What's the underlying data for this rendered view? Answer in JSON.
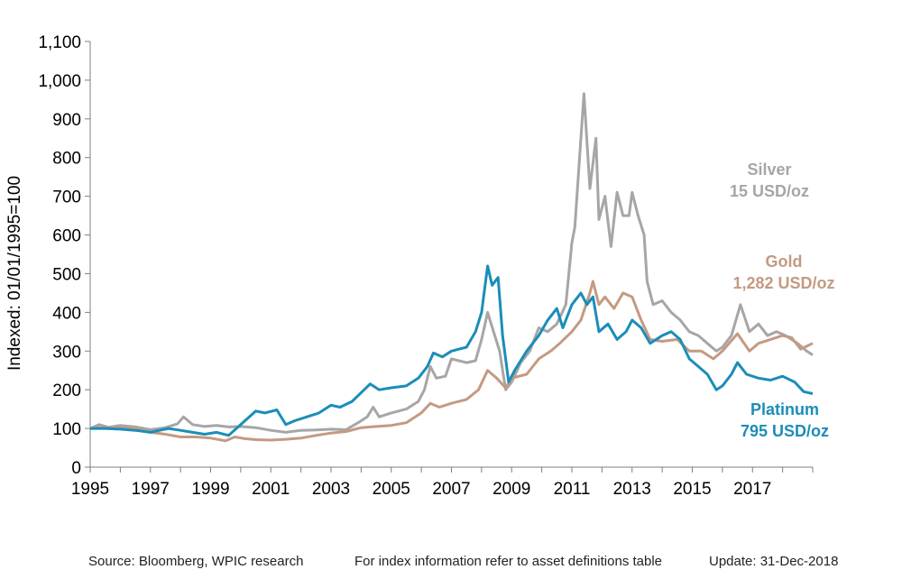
{
  "chart_data": {
    "type": "line",
    "ylabel": "Indexed: 01/01/1995=100",
    "xlabel": "",
    "xlim": [
      1995,
      2019
    ],
    "ylim": [
      0,
      1100
    ],
    "y_ticks": [
      0,
      100,
      200,
      300,
      400,
      500,
      600,
      700,
      800,
      900,
      1000,
      1100
    ],
    "y_tick_labels": [
      "0",
      "100",
      "200",
      "300",
      "400",
      "500",
      "600",
      "700",
      "800",
      "900",
      "1,000",
      "1,100"
    ],
    "x_ticks": [
      1995,
      1997,
      1999,
      2001,
      2003,
      2005,
      2007,
      2009,
      2011,
      2013,
      2015,
      2017
    ],
    "x_tick_labels": [
      "1995",
      "1997",
      "1999",
      "2001",
      "2003",
      "2005",
      "2007",
      "2009",
      "2011",
      "2013",
      "2015",
      "2017"
    ],
    "grid": false,
    "series": [
      {
        "name": "Silver",
        "label_lines": [
          "Silver",
          "15 USD/oz"
        ],
        "color": "#A6A6A6",
        "points": [
          [
            1995.0,
            100
          ],
          [
            1995.3,
            110
          ],
          [
            1995.6,
            103
          ],
          [
            1996.0,
            108
          ],
          [
            1996.5,
            104
          ],
          [
            1997.0,
            97
          ],
          [
            1997.5,
            102
          ],
          [
            1997.9,
            112
          ],
          [
            1998.1,
            130
          ],
          [
            1998.4,
            110
          ],
          [
            1998.8,
            105
          ],
          [
            1999.2,
            108
          ],
          [
            1999.6,
            104
          ],
          [
            2000.0,
            105
          ],
          [
            2000.5,
            102
          ],
          [
            2001.0,
            95
          ],
          [
            2001.5,
            90
          ],
          [
            2002.0,
            95
          ],
          [
            2002.5,
            96
          ],
          [
            2003.0,
            98
          ],
          [
            2003.5,
            97
          ],
          [
            2003.9,
            115
          ],
          [
            2004.2,
            130
          ],
          [
            2004.4,
            155
          ],
          [
            2004.6,
            130
          ],
          [
            2005.0,
            140
          ],
          [
            2005.5,
            150
          ],
          [
            2005.9,
            170
          ],
          [
            2006.1,
            200
          ],
          [
            2006.3,
            260
          ],
          [
            2006.5,
            230
          ],
          [
            2006.8,
            235
          ],
          [
            2007.0,
            280
          ],
          [
            2007.5,
            270
          ],
          [
            2007.8,
            275
          ],
          [
            2008.0,
            330
          ],
          [
            2008.2,
            400
          ],
          [
            2008.4,
            350
          ],
          [
            2008.6,
            300
          ],
          [
            2008.8,
            200
          ],
          [
            2009.0,
            220
          ],
          [
            2009.3,
            270
          ],
          [
            2009.6,
            300
          ],
          [
            2009.9,
            360
          ],
          [
            2010.2,
            350
          ],
          [
            2010.5,
            370
          ],
          [
            2010.8,
            420
          ],
          [
            2011.0,
            580
          ],
          [
            2011.1,
            620
          ],
          [
            2011.3,
            850
          ],
          [
            2011.4,
            965
          ],
          [
            2011.6,
            720
          ],
          [
            2011.8,
            850
          ],
          [
            2011.9,
            640
          ],
          [
            2012.1,
            700
          ],
          [
            2012.3,
            570
          ],
          [
            2012.5,
            710
          ],
          [
            2012.7,
            650
          ],
          [
            2012.9,
            650
          ],
          [
            2013.0,
            710
          ],
          [
            2013.2,
            650
          ],
          [
            2013.4,
            600
          ],
          [
            2013.5,
            480
          ],
          [
            2013.7,
            420
          ],
          [
            2014.0,
            430
          ],
          [
            2014.3,
            400
          ],
          [
            2014.6,
            380
          ],
          [
            2014.9,
            350
          ],
          [
            2015.2,
            340
          ],
          [
            2015.5,
            320
          ],
          [
            2015.8,
            300
          ],
          [
            2016.0,
            310
          ],
          [
            2016.3,
            340
          ],
          [
            2016.6,
            420
          ],
          [
            2016.9,
            350
          ],
          [
            2017.2,
            370
          ],
          [
            2017.5,
            340
          ],
          [
            2017.8,
            350
          ],
          [
            2018.1,
            340
          ],
          [
            2018.5,
            320
          ],
          [
            2018.8,
            300
          ],
          [
            2019.0,
            290
          ]
        ]
      },
      {
        "name": "Gold",
        "label_lines": [
          "Gold",
          "1,282 USD/oz"
        ],
        "color": "#C49A82",
        "points": [
          [
            1995.0,
            100
          ],
          [
            1995.5,
            103
          ],
          [
            1996.0,
            102
          ],
          [
            1996.5,
            100
          ],
          [
            1997.0,
            90
          ],
          [
            1997.5,
            85
          ],
          [
            1998.0,
            78
          ],
          [
            1998.5,
            78
          ],
          [
            1999.0,
            75
          ],
          [
            1999.5,
            68
          ],
          [
            1999.8,
            78
          ],
          [
            2000.1,
            74
          ],
          [
            2000.5,
            71
          ],
          [
            2001.0,
            70
          ],
          [
            2001.5,
            72
          ],
          [
            2002.0,
            75
          ],
          [
            2002.5,
            82
          ],
          [
            2003.0,
            88
          ],
          [
            2003.5,
            92
          ],
          [
            2004.0,
            102
          ],
          [
            2004.5,
            105
          ],
          [
            2005.0,
            108
          ],
          [
            2005.5,
            115
          ],
          [
            2006.0,
            140
          ],
          [
            2006.3,
            165
          ],
          [
            2006.6,
            155
          ],
          [
            2007.0,
            165
          ],
          [
            2007.5,
            175
          ],
          [
            2007.9,
            200
          ],
          [
            2008.2,
            250
          ],
          [
            2008.5,
            230
          ],
          [
            2008.8,
            205
          ],
          [
            2009.0,
            230
          ],
          [
            2009.5,
            240
          ],
          [
            2009.9,
            280
          ],
          [
            2010.3,
            300
          ],
          [
            2010.6,
            320
          ],
          [
            2011.0,
            350
          ],
          [
            2011.3,
            380
          ],
          [
            2011.6,
            450
          ],
          [
            2011.7,
            480
          ],
          [
            2011.9,
            420
          ],
          [
            2012.1,
            440
          ],
          [
            2012.4,
            410
          ],
          [
            2012.7,
            450
          ],
          [
            2013.0,
            440
          ],
          [
            2013.3,
            380
          ],
          [
            2013.6,
            330
          ],
          [
            2014.0,
            325
          ],
          [
            2014.5,
            330
          ],
          [
            2014.9,
            300
          ],
          [
            2015.3,
            300
          ],
          [
            2015.7,
            280
          ],
          [
            2016.0,
            300
          ],
          [
            2016.5,
            345
          ],
          [
            2016.9,
            300
          ],
          [
            2017.2,
            320
          ],
          [
            2017.6,
            330
          ],
          [
            2018.0,
            340
          ],
          [
            2018.3,
            335
          ],
          [
            2018.6,
            305
          ],
          [
            2019.0,
            320
          ]
        ]
      },
      {
        "name": "Platinum",
        "label_lines": [
          "Platinum",
          "795 USD/oz"
        ],
        "color": "#1B8DB8",
        "points": [
          [
            1995.0,
            100
          ],
          [
            1995.5,
            100
          ],
          [
            1996.0,
            98
          ],
          [
            1996.5,
            95
          ],
          [
            1997.0,
            90
          ],
          [
            1997.3,
            95
          ],
          [
            1997.6,
            100
          ],
          [
            1998.0,
            95
          ],
          [
            1998.4,
            90
          ],
          [
            1998.8,
            85
          ],
          [
            1999.2,
            90
          ],
          [
            1999.6,
            82
          ],
          [
            2000.0,
            110
          ],
          [
            2000.5,
            145
          ],
          [
            2000.8,
            140
          ],
          [
            2001.2,
            148
          ],
          [
            2001.5,
            110
          ],
          [
            2001.8,
            120
          ],
          [
            2002.2,
            130
          ],
          [
            2002.6,
            140
          ],
          [
            2003.0,
            160
          ],
          [
            2003.3,
            155
          ],
          [
            2003.7,
            170
          ],
          [
            2004.1,
            200
          ],
          [
            2004.3,
            215
          ],
          [
            2004.6,
            200
          ],
          [
            2005.0,
            205
          ],
          [
            2005.5,
            210
          ],
          [
            2005.9,
            230
          ],
          [
            2006.2,
            260
          ],
          [
            2006.4,
            295
          ],
          [
            2006.7,
            285
          ],
          [
            2007.0,
            300
          ],
          [
            2007.5,
            310
          ],
          [
            2007.8,
            350
          ],
          [
            2008.0,
            400
          ],
          [
            2008.2,
            520
          ],
          [
            2008.35,
            470
          ],
          [
            2008.55,
            490
          ],
          [
            2008.7,
            340
          ],
          [
            2008.9,
            220
          ],
          [
            2009.1,
            250
          ],
          [
            2009.5,
            300
          ],
          [
            2009.9,
            340
          ],
          [
            2010.2,
            380
          ],
          [
            2010.5,
            410
          ],
          [
            2010.7,
            360
          ],
          [
            2011.0,
            420
          ],
          [
            2011.3,
            450
          ],
          [
            2011.5,
            420
          ],
          [
            2011.7,
            440
          ],
          [
            2011.9,
            350
          ],
          [
            2012.2,
            370
          ],
          [
            2012.5,
            330
          ],
          [
            2012.8,
            350
          ],
          [
            2013.0,
            380
          ],
          [
            2013.3,
            360
          ],
          [
            2013.6,
            320
          ],
          [
            2014.0,
            340
          ],
          [
            2014.3,
            350
          ],
          [
            2014.6,
            330
          ],
          [
            2014.9,
            280
          ],
          [
            2015.2,
            260
          ],
          [
            2015.5,
            240
          ],
          [
            2015.8,
            200
          ],
          [
            2016.0,
            210
          ],
          [
            2016.3,
            240
          ],
          [
            2016.5,
            270
          ],
          [
            2016.8,
            240
          ],
          [
            2017.2,
            230
          ],
          [
            2017.6,
            225
          ],
          [
            2018.0,
            235
          ],
          [
            2018.4,
            220
          ],
          [
            2018.7,
            195
          ],
          [
            2019.0,
            190
          ]
        ]
      }
    ]
  },
  "footer": {
    "source": "Source: Bloomberg, WPIC research",
    "note": "For index information refer to asset definitions table",
    "update": "Update: 31-Dec-2018"
  }
}
